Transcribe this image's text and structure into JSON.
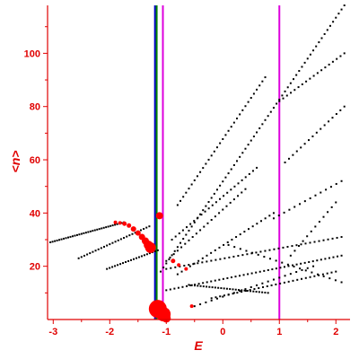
{
  "chart_data": {
    "type": "scatter",
    "xlabel": "E",
    "ylabel": "<n>",
    "xlim": [
      -3.1,
      2.25
    ],
    "ylim": [
      0,
      118
    ],
    "x_ticks": [
      -3,
      -2,
      -1,
      0,
      1,
      2
    ],
    "y_ticks": [
      20,
      40,
      60,
      80,
      100
    ],
    "grid": false,
    "colors": {
      "axis": "#e00000",
      "points": "#000000",
      "highlight": "#ff0000",
      "line_blue": "#0000cc",
      "line_green": "#008000",
      "line_magenta": "#dd00dd"
    },
    "vertical_lines": [
      {
        "x": -1.2,
        "color": "#0000cc"
      },
      {
        "x": -1.17,
        "color": "#008000"
      },
      {
        "x": -1.06,
        "color": "#dd00dd"
      },
      {
        "x": 1.0,
        "color": "#dd00dd"
      }
    ],
    "branches": [
      {
        "x_start": -3.05,
        "x_end": -1.75,
        "y_start": 29,
        "y_end": 36.5,
        "n": 34
      },
      {
        "x_start": -2.55,
        "x_end": -1.3,
        "y_start": 23,
        "y_end": 35,
        "n": 26
      },
      {
        "x_start": -2.05,
        "x_end": -1.15,
        "y_start": 19,
        "y_end": 26,
        "n": 20
      },
      {
        "x_start": -1.1,
        "x_end": 2.15,
        "y_start": 18,
        "y_end": 118,
        "n": 66
      },
      {
        "x_start": -0.8,
        "x_end": 0.75,
        "y_start": 43,
        "y_end": 91,
        "n": 32
      },
      {
        "x_start": 1.0,
        "x_end": 2.15,
        "y_start": 82,
        "y_end": 100,
        "n": 18
      },
      {
        "x_start": -0.9,
        "x_end": 0.6,
        "y_start": 30,
        "y_end": 57,
        "n": 24
      },
      {
        "x_start": 1.1,
        "x_end": 2.15,
        "y_start": 59,
        "y_end": 80,
        "n": 16
      },
      {
        "x_start": -1.0,
        "x_end": 0.4,
        "y_start": 22,
        "y_end": 49,
        "n": 22
      },
      {
        "x_start": 0.9,
        "x_end": 2.1,
        "y_start": 38,
        "y_end": 52,
        "n": 14
      },
      {
        "x_start": -0.8,
        "x_end": 0.9,
        "y_start": 17,
        "y_end": 40,
        "n": 24
      },
      {
        "x_start": 1.2,
        "x_end": 2.0,
        "y_start": 24,
        "y_end": 44,
        "n": 12
      },
      {
        "x_start": -1.0,
        "x_end": 2.1,
        "y_start": 19,
        "y_end": 31,
        "n": 40
      },
      {
        "x_start": -1.0,
        "x_end": 2.1,
        "y_start": 11,
        "y_end": 24,
        "n": 44
      },
      {
        "x_start": -0.6,
        "x_end": 0.8,
        "y_start": 13,
        "y_end": 10,
        "n": 28
      },
      {
        "x_start": -0.2,
        "x_end": 2.0,
        "y_start": 8,
        "y_end": 18,
        "n": 30
      },
      {
        "x_start": -0.5,
        "x_end": 1.6,
        "y_start": 5,
        "y_end": 20,
        "n": 22
      },
      {
        "x_start": 0.1,
        "x_end": 2.1,
        "y_start": 28,
        "y_end": 14,
        "n": 20
      }
    ],
    "highlight_points": [
      {
        "x": -1.9,
        "y": 36.5,
        "r": 2
      },
      {
        "x": -1.82,
        "y": 36.3,
        "r": 2
      },
      {
        "x": -1.74,
        "y": 36.0,
        "r": 2.5
      },
      {
        "x": -1.66,
        "y": 35.3,
        "r": 2.5
      },
      {
        "x": -1.58,
        "y": 34.0,
        "r": 3
      },
      {
        "x": -1.5,
        "y": 32.5,
        "r": 3
      },
      {
        "x": -1.43,
        "y": 31.0,
        "r": 3.5
      },
      {
        "x": -1.37,
        "y": 29.5,
        "r": 4
      },
      {
        "x": -1.32,
        "y": 28.0,
        "r": 5
      },
      {
        "x": -1.28,
        "y": 27.0,
        "r": 6
      },
      {
        "x": -1.12,
        "y": 39.0,
        "r": 4
      },
      {
        "x": -0.88,
        "y": 22.0,
        "r": 2.5
      },
      {
        "x": -0.78,
        "y": 20.5,
        "r": 2
      },
      {
        "x": -0.65,
        "y": 19.0,
        "r": 2
      },
      {
        "x": -1.15,
        "y": 4.0,
        "r": 10
      },
      {
        "x": -1.05,
        "y": 2.0,
        "r": 8
      },
      {
        "x": -1.0,
        "y": 0.5,
        "r": 5
      },
      {
        "x": -0.55,
        "y": 5.0,
        "r": 2
      }
    ]
  }
}
